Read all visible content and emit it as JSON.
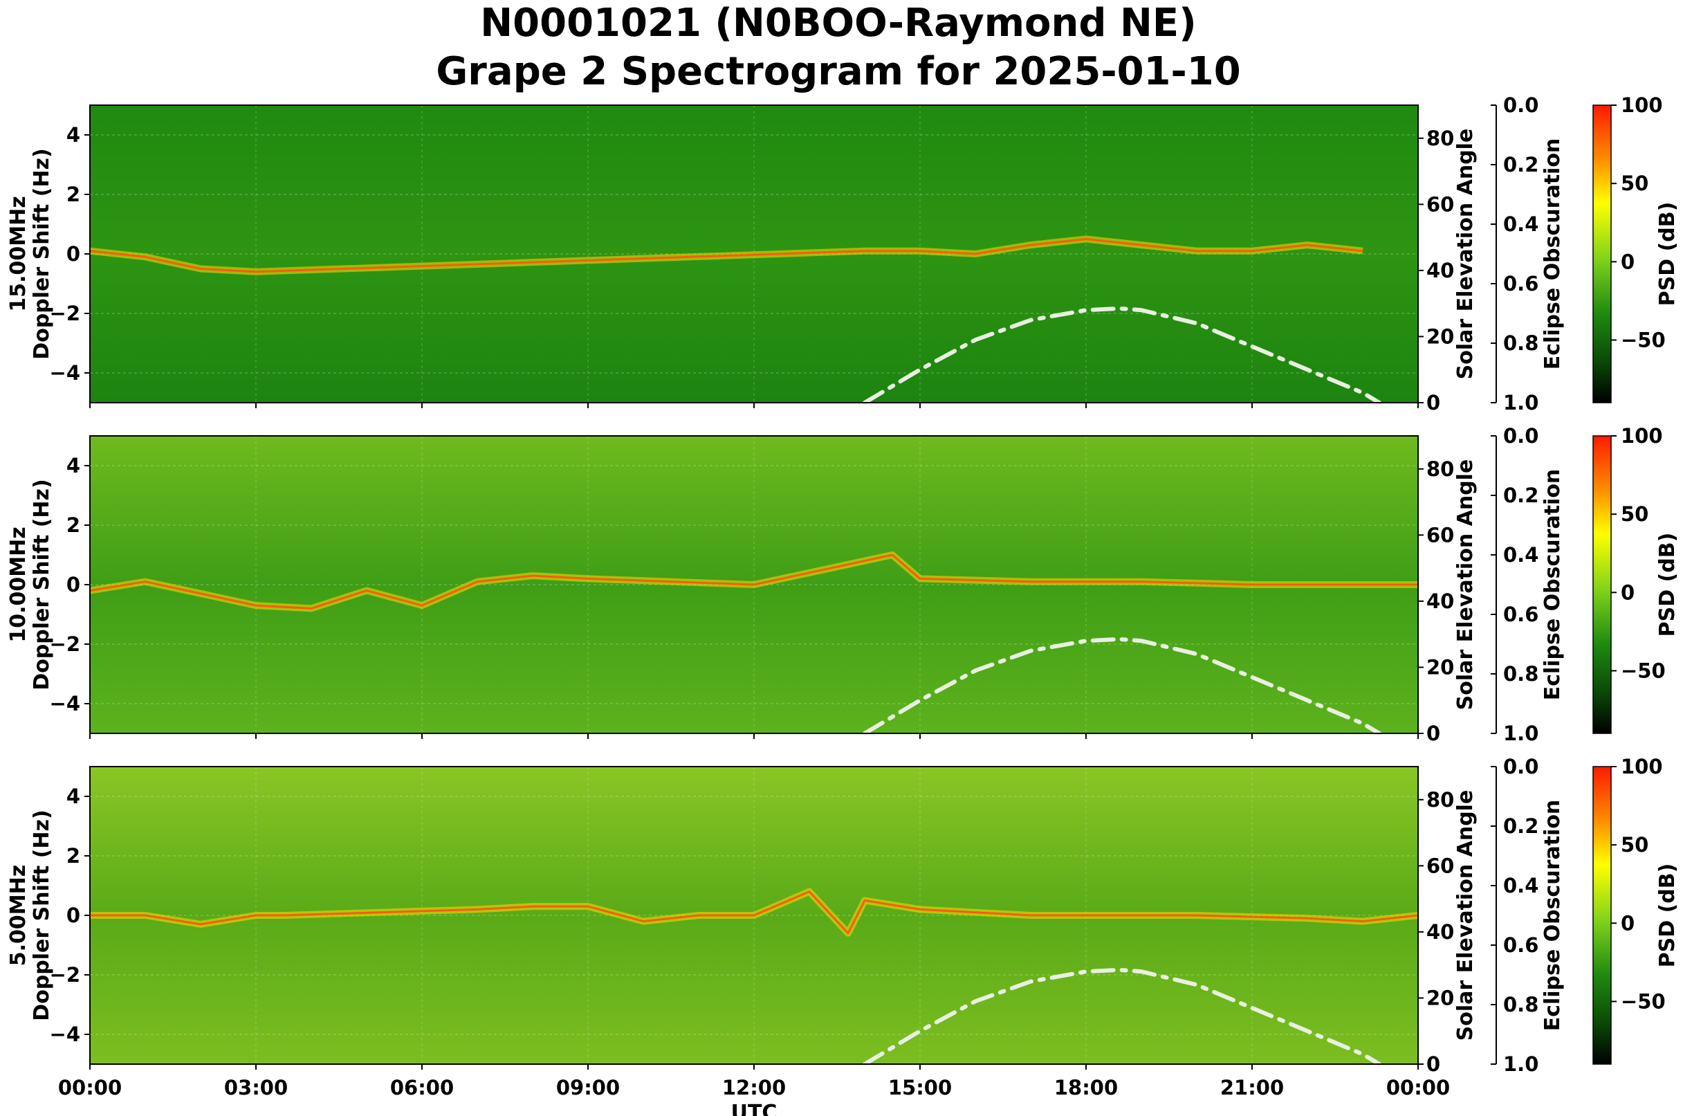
{
  "figure": {
    "title_line1": "N0001021 (N0BOO-Raymond NE)",
    "title_line2": "Grape 2 Spectrogram for 2025-01-10"
  },
  "chart_data": [
    {
      "type": "heatmap",
      "freq_label": "15.00MHz",
      "ylabel": "Doppler Shift (Hz)",
      "y2label": "Solar Elevation Angle",
      "y3label": "Eclipse Obscuration",
      "cbar_label": "PSD (dB)",
      "xlabel": "UTC",
      "ylim": [
        -5,
        5
      ],
      "yticks": [
        "−4",
        "−2",
        "0",
        "2",
        "4"
      ],
      "y2lim": [
        0,
        90
      ],
      "y2ticks": [
        "0",
        "20",
        "40",
        "60",
        "80"
      ],
      "y3ticks": [
        "0.0",
        "0.2",
        "0.4",
        "0.6",
        "0.8",
        "1.0"
      ],
      "cbar_ticks": [
        "100",
        "50",
        "0",
        "−50"
      ],
      "xticks": [
        "00:00",
        "03:00",
        "06:00",
        "09:00",
        "12:00",
        "15:00",
        "18:00",
        "21:00",
        "00:00"
      ],
      "background_level": "green",
      "doppler_trace": [
        [
          0,
          0.1
        ],
        [
          1,
          -0.1
        ],
        [
          2,
          -0.5
        ],
        [
          3,
          -0.6
        ],
        [
          14,
          0.1
        ],
        [
          15,
          0.1
        ],
        [
          16,
          0.0
        ],
        [
          17,
          0.3
        ],
        [
          18,
          0.5
        ],
        [
          19,
          0.3
        ],
        [
          20,
          0.1
        ],
        [
          21,
          0.1
        ],
        [
          22,
          0.3
        ],
        [
          23,
          0.1
        ]
      ],
      "solar_elevation": [
        [
          14,
          0
        ],
        [
          15,
          10
        ],
        [
          16,
          19
        ],
        [
          17,
          25
        ],
        [
          18,
          28
        ],
        [
          18.6,
          28.5
        ],
        [
          19,
          28
        ],
        [
          20,
          24
        ],
        [
          21,
          17
        ],
        [
          22,
          10
        ],
        [
          23,
          3
        ],
        [
          23.3,
          0
        ]
      ]
    },
    {
      "type": "heatmap",
      "freq_label": "10.00MHz",
      "ylabel": "Doppler Shift (Hz)",
      "y2label": "Solar Elevation Angle",
      "y3label": "Eclipse Obscuration",
      "cbar_label": "PSD (dB)",
      "xlabel": "UTC",
      "ylim": [
        -5,
        5
      ],
      "yticks": [
        "−4",
        "−2",
        "0",
        "2",
        "4"
      ],
      "y2lim": [
        0,
        90
      ],
      "y2ticks": [
        "0",
        "20",
        "40",
        "60",
        "80"
      ],
      "y3ticks": [
        "0.0",
        "0.2",
        "0.4",
        "0.6",
        "0.8",
        "1.0"
      ],
      "cbar_ticks": [
        "100",
        "50",
        "0",
        "−50"
      ],
      "xticks": [
        "00:00",
        "03:00",
        "06:00",
        "09:00",
        "12:00",
        "15:00",
        "18:00",
        "21:00",
        "00:00"
      ],
      "background_level": "mixed",
      "doppler_trace": [
        [
          0,
          -0.2
        ],
        [
          1,
          0.1
        ],
        [
          2,
          -0.3
        ],
        [
          3,
          -0.7
        ],
        [
          4,
          -0.8
        ],
        [
          5,
          -0.2
        ],
        [
          6,
          -0.7
        ],
        [
          7,
          0.1
        ],
        [
          8,
          0.3
        ],
        [
          9,
          0.2
        ],
        [
          12,
          0.0
        ],
        [
          14.5,
          1.0
        ],
        [
          15,
          0.2
        ],
        [
          17,
          0.1
        ],
        [
          19,
          0.1
        ],
        [
          21,
          0.0
        ],
        [
          23,
          0.0
        ],
        [
          24,
          0.0
        ]
      ],
      "solar_elevation": [
        [
          14,
          0
        ],
        [
          15,
          10
        ],
        [
          16,
          19
        ],
        [
          17,
          25
        ],
        [
          18,
          28
        ],
        [
          18.6,
          28.5
        ],
        [
          19,
          28
        ],
        [
          20,
          24
        ],
        [
          21,
          17
        ],
        [
          22,
          10
        ],
        [
          23,
          3
        ],
        [
          23.3,
          0
        ]
      ]
    },
    {
      "type": "heatmap",
      "freq_label": "5.00MHz",
      "ylabel": "Doppler Shift (Hz)",
      "y2label": "Solar Elevation Angle",
      "y3label": "Eclipse Obscuration",
      "cbar_label": "PSD (dB)",
      "xlabel": "UTC",
      "ylim": [
        -5,
        5
      ],
      "yticks": [
        "−4",
        "−2",
        "0",
        "2",
        "4"
      ],
      "y2lim": [
        0,
        90
      ],
      "y2ticks": [
        "0",
        "20",
        "40",
        "60",
        "80"
      ],
      "y3ticks": [
        "0.0",
        "0.2",
        "0.4",
        "0.6",
        "0.8",
        "1.0"
      ],
      "cbar_ticks": [
        "100",
        "50",
        "0",
        "−50"
      ],
      "xticks": [
        "00:00",
        "03:00",
        "06:00",
        "09:00",
        "12:00",
        "15:00",
        "18:00",
        "21:00",
        "00:00"
      ],
      "background_level": "yellow-green",
      "doppler_trace": [
        [
          0,
          0.0
        ],
        [
          1,
          0.0
        ],
        [
          2,
          -0.3
        ],
        [
          3,
          0.0
        ],
        [
          3.5,
          0.0
        ],
        [
          7,
          0.2
        ],
        [
          8,
          0.3
        ],
        [
          9,
          0.3
        ],
        [
          10,
          -0.2
        ],
        [
          11,
          0.0
        ],
        [
          12,
          0.0
        ],
        [
          13,
          0.8
        ],
        [
          13.7,
          -0.6
        ],
        [
          14,
          0.5
        ],
        [
          15,
          0.2
        ],
        [
          17,
          0.0
        ],
        [
          20,
          0.0
        ],
        [
          22,
          -0.1
        ],
        [
          23,
          -0.2
        ],
        [
          24,
          0.0
        ]
      ],
      "solar_elevation": [
        [
          14,
          0
        ],
        [
          15,
          10
        ],
        [
          16,
          19
        ],
        [
          17,
          25
        ],
        [
          18,
          28
        ],
        [
          18.6,
          28.5
        ],
        [
          19,
          28
        ],
        [
          20,
          24
        ],
        [
          21,
          17
        ],
        [
          22,
          10
        ],
        [
          23,
          3
        ],
        [
          23.3,
          0
        ]
      ]
    }
  ]
}
